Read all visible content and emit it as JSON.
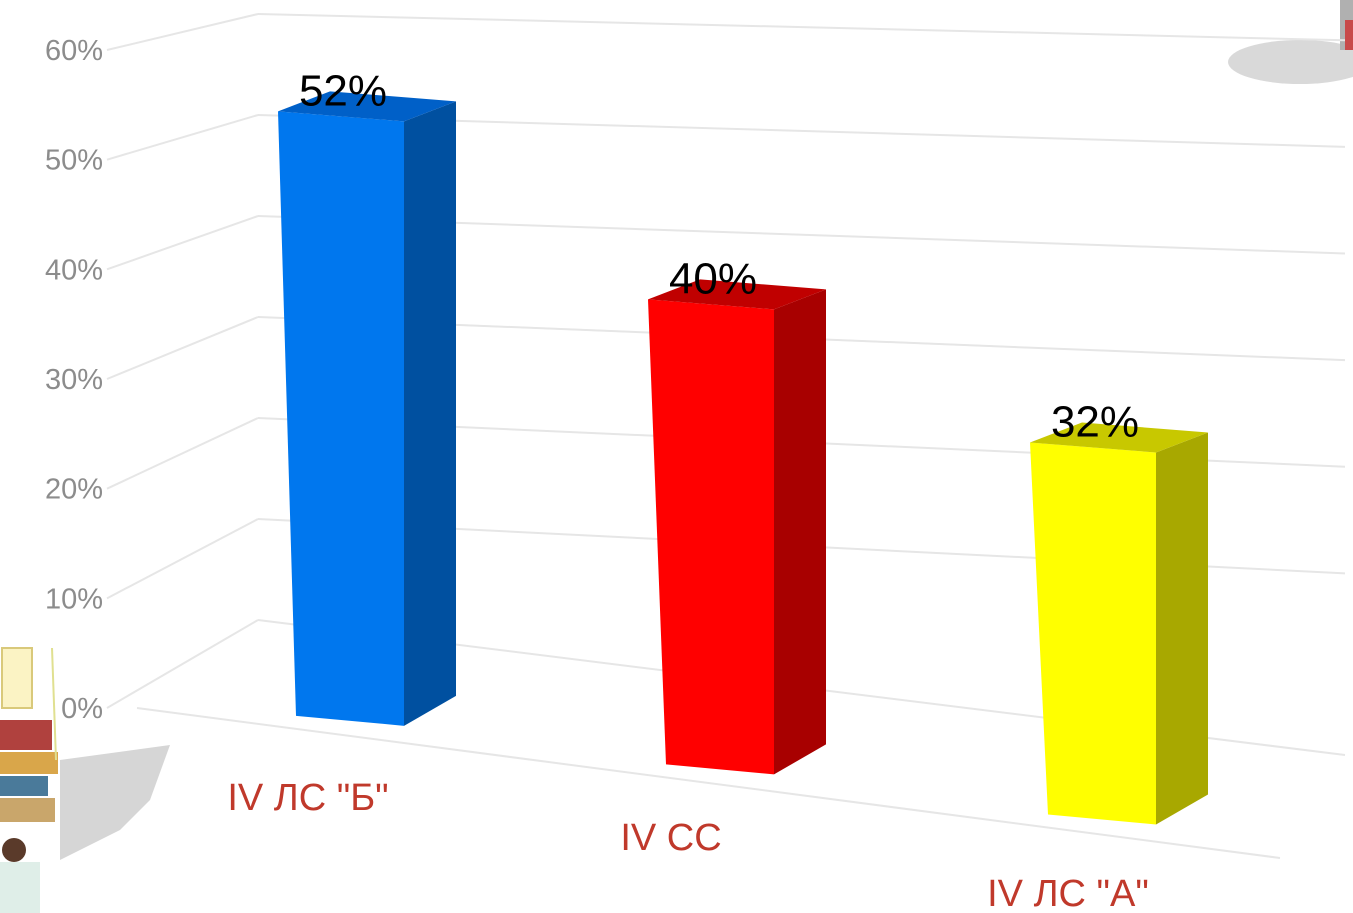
{
  "chart_data": {
    "type": "bar",
    "style": "3d-column",
    "categories": [
      "IV ЛС \"Б\"",
      "IV СС",
      "IV ЛС \"А\""
    ],
    "values": [
      52,
      40,
      32
    ],
    "value_labels": [
      "52%",
      "40%",
      "32%"
    ],
    "unit": "%",
    "ylim": [
      0,
      60
    ],
    "yticks": [
      0,
      10,
      20,
      30,
      40,
      50,
      60
    ],
    "ytick_labels": [
      "0%",
      "10%",
      "20%",
      "30%",
      "40%",
      "50%",
      "60%"
    ],
    "grid": true,
    "legend": false,
    "colors": {
      "bars": [
        "#0077ee",
        "#ff0000",
        "#ffff00"
      ],
      "bar_sides": [
        "#0050a0",
        "#a80000",
        "#a8a800"
      ],
      "bar_tops": [
        "#0060c8",
        "#c00000",
        "#c8c800"
      ],
      "category_text": "#c0392b",
      "grid": "#e6e6e6",
      "tick_text": "#8c8c8c"
    }
  },
  "decorations": {
    "bottom_left": "books-clipart",
    "top_right": "gray-shadow-clipart"
  }
}
